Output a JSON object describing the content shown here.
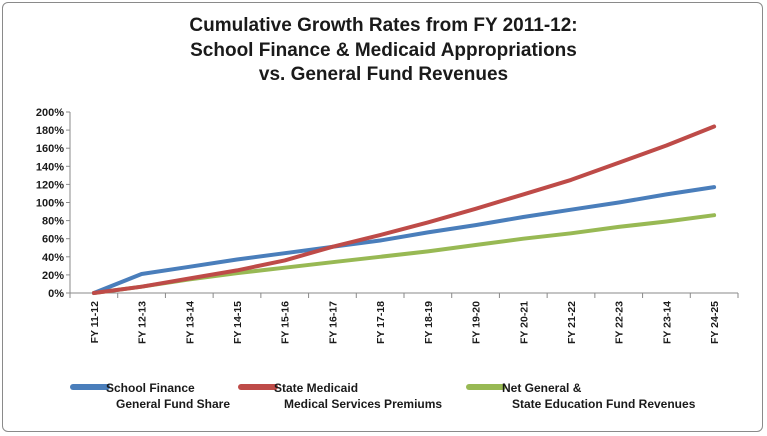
{
  "chart_data": {
    "type": "line",
    "title": [
      "Cumulative Growth Rates from FY 2011-12:",
      "School Finance & Medicaid Appropriations",
      "vs. General Fund Revenues"
    ],
    "categories": [
      "FY 11-12",
      "FY 12-13",
      "FY 13-14",
      "FY 14-15",
      "FY 15-16",
      "FY 16-17",
      "FY 17-18",
      "FY 18-19",
      "FY 19-20",
      "FY 20-21",
      "FY 21-22",
      "FY 22-23",
      "FY 23-14",
      "FY 24-25"
    ],
    "y_tick_labels": [
      "0%",
      "20%",
      "40%",
      "60%",
      "80%",
      "100%",
      "120%",
      "140%",
      "160%",
      "180%",
      "200%"
    ],
    "ylim": [
      0,
      200
    ],
    "grid": false,
    "legend_position": "bottom",
    "series": [
      {
        "name_lines": [
          "School Finance",
          "General Fund Share"
        ],
        "color": "#4a7ebb",
        "values": [
          0,
          21,
          29,
          37,
          44,
          51,
          58,
          67,
          75,
          84,
          92,
          100,
          109,
          117
        ]
      },
      {
        "name_lines": [
          "State Medicaid",
          "Medical Services Premiums"
        ],
        "color": "#be4b48",
        "values": [
          0,
          7,
          16,
          25,
          36,
          51,
          64,
          78,
          93,
          109,
          125,
          144,
          163,
          184
        ]
      },
      {
        "name_lines": [
          "Net General &",
          "State Education Fund Revenues"
        ],
        "color": "#98b954",
        "values": [
          0,
          7,
          15,
          22,
          28,
          34,
          40,
          46,
          53,
          60,
          66,
          73,
          79,
          86
        ]
      }
    ]
  }
}
